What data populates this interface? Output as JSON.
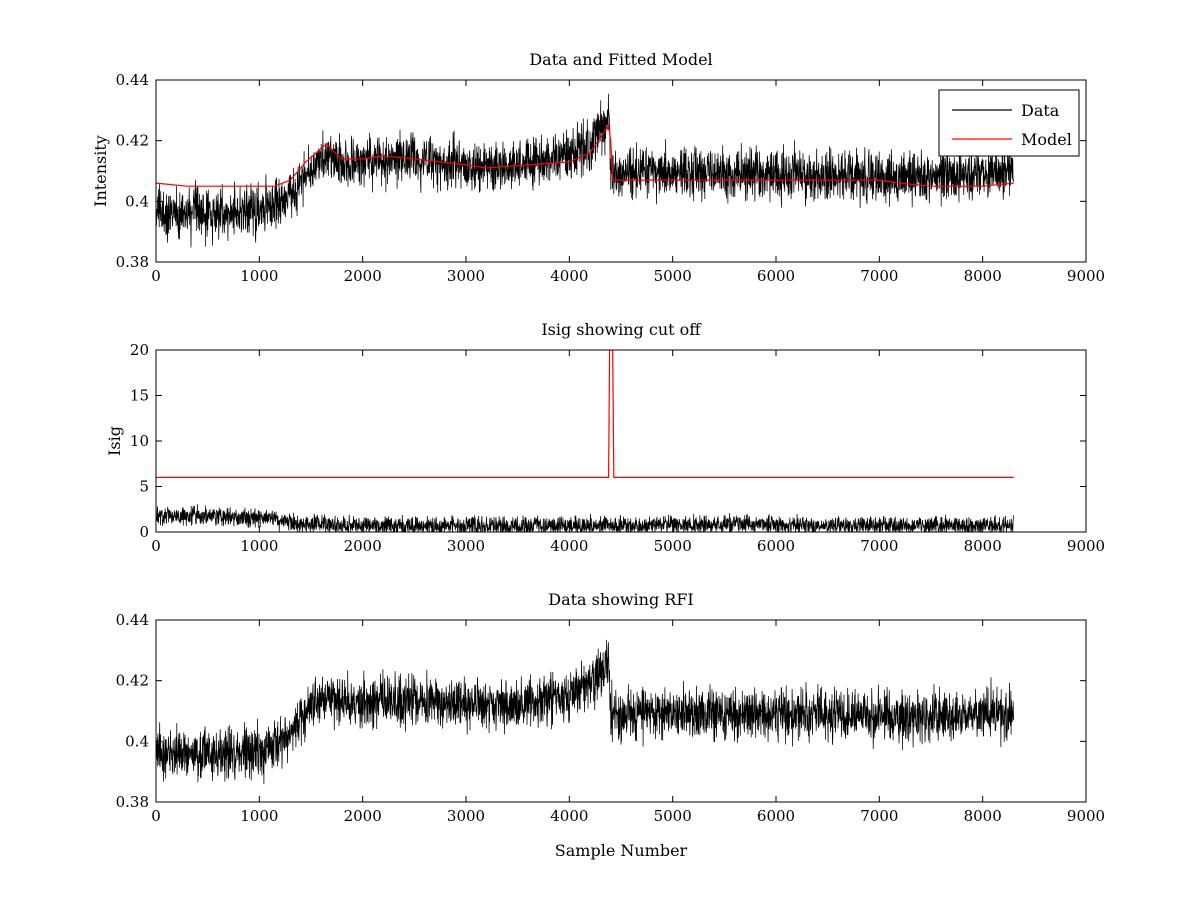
{
  "colors": {
    "data": "#000000",
    "model": "#ff0000",
    "axes": "#000000",
    "background": "#ffffff"
  },
  "chart_data": [
    {
      "type": "line",
      "title": "Data and Fitted Model",
      "xlabel": "",
      "ylabel": "Intensity",
      "xlim": [
        0,
        9000
      ],
      "ylim": [
        0.38,
        0.44
      ],
      "xticks": [
        0,
        1000,
        2000,
        3000,
        4000,
        5000,
        6000,
        7000,
        8000,
        9000
      ],
      "yticks": [
        0.38,
        0.4,
        0.42,
        0.44
      ],
      "ytick_labels": [
        "0.38",
        "0.4",
        "0.42",
        "0.44"
      ],
      "grid": false,
      "legend": {
        "position": "top-right"
      },
      "series": [
        {
          "name": "Data",
          "color": "#000000",
          "style": "noisy",
          "x": [
            0,
            500,
            1000,
            1300,
            1500,
            1650,
            1800,
            2000,
            2500,
            3000,
            3500,
            4000,
            4200,
            4380,
            4400,
            4500,
            5000,
            6000,
            7000,
            7500,
            8000,
            8300
          ],
          "y": [
            0.396,
            0.396,
            0.397,
            0.402,
            0.411,
            0.415,
            0.412,
            0.413,
            0.414,
            0.412,
            0.412,
            0.415,
            0.419,
            0.427,
            0.41,
            0.409,
            0.409,
            0.409,
            0.408,
            0.408,
            0.409,
            0.41
          ],
          "noise_amplitude": 0.0045
        },
        {
          "name": "Model",
          "color": "#ff0000",
          "style": "line",
          "x": [
            0,
            300,
            800,
            1150,
            1300,
            1450,
            1550,
            1650,
            1700,
            1800,
            2000,
            2200,
            2500,
            3000,
            3200,
            3600,
            4000,
            4200,
            4380,
            4400,
            4420,
            4600,
            5000,
            5500,
            6000,
            6500,
            7000,
            7200,
            7500,
            8000,
            8300
          ],
          "y": [
            0.406,
            0.405,
            0.405,
            0.405,
            0.407,
            0.413,
            0.416,
            0.419,
            0.417,
            0.414,
            0.414,
            0.415,
            0.414,
            0.412,
            0.411,
            0.412,
            0.413,
            0.416,
            0.425,
            0.42,
            0.407,
            0.407,
            0.407,
            0.407,
            0.407,
            0.407,
            0.407,
            0.406,
            0.405,
            0.405,
            0.406
          ]
        }
      ]
    },
    {
      "type": "line",
      "title": "Isig showing cut off",
      "xlabel": "",
      "ylabel": "Isig",
      "xlim": [
        0,
        9000
      ],
      "ylim": [
        0,
        20
      ],
      "xticks": [
        0,
        1000,
        2000,
        3000,
        4000,
        5000,
        6000,
        7000,
        8000,
        9000
      ],
      "yticks": [
        0,
        5,
        10,
        15,
        20
      ],
      "ytick_labels": [
        "0",
        "5",
        "10",
        "15",
        "20"
      ],
      "grid": false,
      "series": [
        {
          "color": "#000000",
          "style": "noise-band",
          "x": [
            0,
            500,
            1000,
            1400,
            2000,
            3000,
            4000,
            5000,
            6000,
            7000,
            8000,
            8300
          ],
          "y": [
            1.8,
            1.8,
            1.5,
            0.9,
            0.7,
            0.6,
            0.7,
            0.8,
            0.8,
            0.7,
            0.7,
            0.7
          ],
          "noise_amplitude": 1.3
        },
        {
          "color": "#ff0000",
          "style": "line",
          "x": [
            0,
            4380,
            4390,
            4420,
            4430,
            8300
          ],
          "y": [
            6,
            6,
            20,
            20,
            6,
            6
          ]
        }
      ]
    },
    {
      "type": "line",
      "title": "Data showing RFI",
      "xlabel": "Sample Number",
      "ylabel": "",
      "xlim": [
        0,
        9000
      ],
      "ylim": [
        0.38,
        0.44
      ],
      "xticks": [
        0,
        1000,
        2000,
        3000,
        4000,
        5000,
        6000,
        7000,
        8000,
        9000
      ],
      "yticks": [
        0.38,
        0.4,
        0.42,
        0.44
      ],
      "ytick_labels": [
        "0.38",
        "0.4",
        "0.42",
        "0.44"
      ],
      "grid": false,
      "series": [
        {
          "color": "#000000",
          "style": "noisy",
          "x": [
            0,
            500,
            1000,
            1300,
            1500,
            1650,
            1800,
            2000,
            2500,
            3000,
            3500,
            4000,
            4200,
            4380,
            4400,
            4500,
            5000,
            6000,
            7000,
            7500,
            8000,
            8300
          ],
          "y": [
            0.396,
            0.396,
            0.397,
            0.402,
            0.411,
            0.415,
            0.412,
            0.413,
            0.414,
            0.412,
            0.412,
            0.415,
            0.419,
            0.427,
            0.41,
            0.409,
            0.409,
            0.409,
            0.408,
            0.408,
            0.409,
            0.41
          ],
          "noise_amplitude": 0.0045
        }
      ]
    }
  ]
}
